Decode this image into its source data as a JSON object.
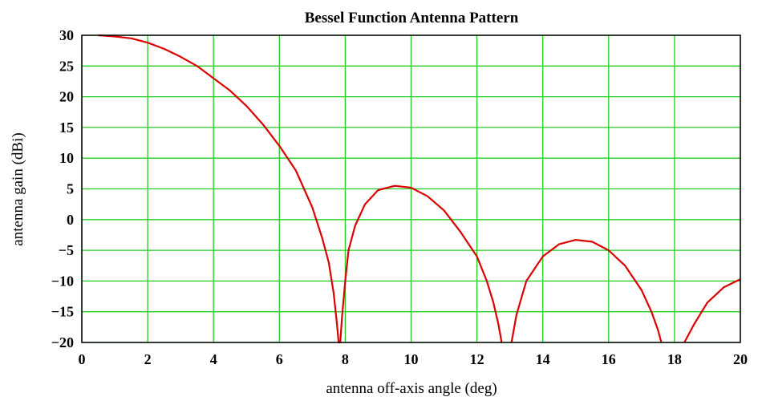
{
  "chart_data": {
    "type": "line",
    "title": "Bessel Function Antenna Pattern",
    "xlabel": "antenna off-axis angle (deg)",
    "ylabel": "antenna gain (dBi)",
    "xlim": [
      0,
      20
    ],
    "ylim": [
      -20,
      30
    ],
    "xticks": [
      0,
      2,
      4,
      6,
      8,
      10,
      12,
      14,
      16,
      18,
      20
    ],
    "yticks": [
      30,
      25,
      20,
      15,
      10,
      5,
      0,
      -5,
      -10,
      -15,
      -20
    ],
    "ytick_labels": [
      "30",
      "25",
      "20",
      "15",
      "10",
      "5",
      "0",
      "−5",
      "−10",
      "−15",
      "−20"
    ],
    "grid": true,
    "colors": {
      "grid": "#22cc22",
      "line": "#dd0000",
      "frame": "#000000"
    },
    "series": [
      {
        "color": "#dd0000",
        "x": [
          0.5,
          1.0,
          1.5,
          2.0,
          2.5,
          3.0,
          3.5,
          4.0,
          4.5,
          5.0,
          5.5,
          6.0,
          6.5,
          7.0,
          7.3,
          7.5,
          7.65,
          7.75,
          7.8,
          7.85,
          7.9,
          8.0,
          8.1,
          8.3,
          8.6,
          9.0,
          9.5,
          10.0,
          10.5,
          11.0,
          11.5,
          12.0,
          12.3,
          12.5,
          12.65,
          12.75,
          null,
          13.05,
          13.2,
          13.5,
          14.0,
          14.5,
          15.0,
          15.5,
          16.0,
          16.5,
          17.0,
          17.3,
          17.5,
          17.6,
          null,
          18.3,
          18.6,
          19.0,
          19.5,
          20.0
        ],
        "y": [
          30.0,
          29.8,
          29.5,
          28.8,
          27.8,
          26.5,
          25.0,
          23.0,
          21.0,
          18.5,
          15.5,
          12.0,
          8.0,
          2.0,
          -3.0,
          -7.0,
          -12.0,
          -17.0,
          -20.0,
          -20.0,
          -16.0,
          -10.0,
          -5.0,
          -1.0,
          2.5,
          4.8,
          5.5,
          5.2,
          3.8,
          1.5,
          -2.0,
          -6.0,
          -10.0,
          -13.5,
          -17.0,
          -20.0,
          null,
          -20.0,
          -15.5,
          -10.0,
          -6.0,
          -4.0,
          -3.3,
          -3.6,
          -5.0,
          -7.5,
          -11.5,
          -15.0,
          -18.0,
          -20.0,
          null,
          -20.0,
          -17.0,
          -13.5,
          -11.0,
          -9.7
        ]
      }
    ]
  }
}
